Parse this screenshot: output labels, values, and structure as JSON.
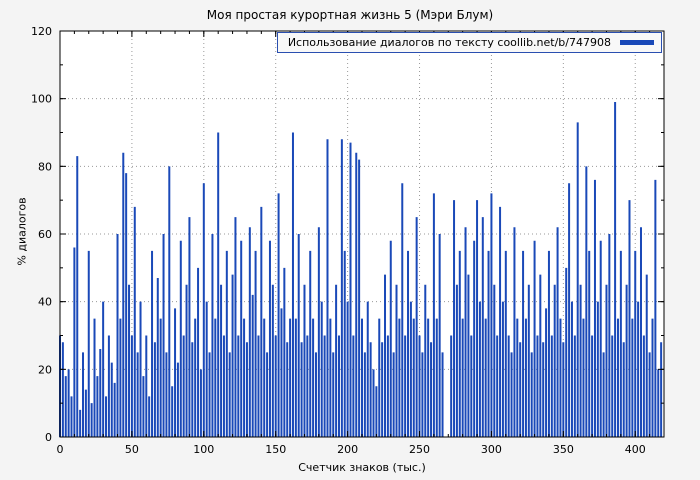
{
  "colors": {
    "bar": "#1a49b8",
    "background": "#f4f4f4",
    "plot_background": "#ffffff",
    "grid": "#9a9a9a",
    "axis": "#000000",
    "legend_border": "#2a4fb0"
  },
  "chart_data": {
    "type": "bar",
    "title": "Моя простая курортная жизнь 5 (Мэри Блум)",
    "legend_label": "Использование диалогов по тексту coollib.net/b/747908",
    "xlabel": "Счетчик знаков (тыс.)",
    "ylabel": "% диалогов",
    "xlim": [
      0,
      420
    ],
    "ylim": [
      0,
      120
    ],
    "xticks": [
      0,
      50,
      100,
      150,
      200,
      250,
      300,
      350,
      400
    ],
    "yticks": [
      0,
      20,
      40,
      60,
      80,
      100,
      120
    ],
    "x_minor_step": 10,
    "y_minor_step": 10,
    "grid": "dotted",
    "legend_position": "top-right",
    "x_start": 0,
    "x_step": 2,
    "values": [
      30,
      28,
      18,
      20,
      12,
      56,
      83,
      8,
      25,
      14,
      55,
      10,
      35,
      18,
      26,
      40,
      12,
      30,
      22,
      16,
      60,
      35,
      84,
      78,
      45,
      30,
      68,
      25,
      40,
      18,
      30,
      12,
      55,
      28,
      47,
      35,
      60,
      25,
      80,
      15,
      38,
      22,
      58,
      30,
      45,
      65,
      28,
      35,
      50,
      20,
      75,
      40,
      25,
      60,
      35,
      90,
      45,
      30,
      55,
      25,
      48,
      65,
      30,
      58,
      35,
      28,
      62,
      42,
      55,
      30,
      68,
      35,
      25,
      58,
      45,
      30,
      72,
      38,
      50,
      28,
      35,
      90,
      35,
      60,
      28,
      45,
      30,
      55,
      35,
      25,
      62,
      40,
      30,
      88,
      35,
      25,
      45,
      30,
      88,
      55,
      40,
      87,
      30,
      84,
      82,
      35,
      25,
      40,
      28,
      20,
      15,
      35,
      28,
      48,
      30,
      58,
      25,
      45,
      35,
      75,
      30,
      55,
      40,
      35,
      65,
      30,
      25,
      45,
      35,
      28,
      72,
      35,
      60,
      25,
      0,
      0,
      30,
      70,
      45,
      55,
      35,
      62,
      48,
      30,
      58,
      70,
      40,
      65,
      35,
      55,
      72,
      45,
      30,
      68,
      40,
      55,
      30,
      25,
      62,
      35,
      28,
      55,
      35,
      45,
      25,
      58,
      30,
      48,
      28,
      38,
      55,
      30,
      45,
      62,
      35,
      28,
      50,
      75,
      40,
      30,
      93,
      45,
      35,
      80,
      55,
      30,
      76,
      40,
      58,
      25,
      45,
      60,
      30,
      99,
      35,
      55,
      28,
      45,
      70,
      35,
      55,
      40,
      62,
      30,
      48,
      25,
      35,
      76,
      20,
      28
    ]
  }
}
